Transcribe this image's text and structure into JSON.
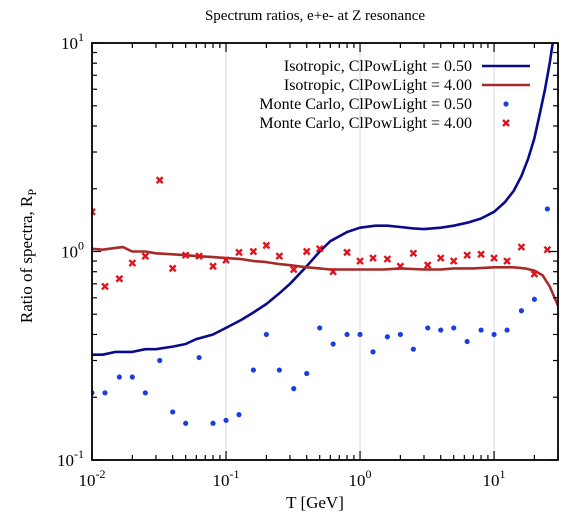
{
  "chart_data": {
    "type": "line",
    "title": "Spectrum ratios, e+e- at Z resonance",
    "xlabel": "T [GeV]",
    "ylabel_main": "Ratio of spectra, R",
    "ylabel_sub": "P",
    "x_scale": "log",
    "y_scale": "log",
    "xlim": [
      0.01,
      30
    ],
    "ylim": [
      0.1,
      10
    ],
    "grid": "vertical",
    "legend_position": "top-right",
    "x_ticks": [
      {
        "value": 0.01,
        "base": "10",
        "exp": "-2"
      },
      {
        "value": 0.1,
        "base": "10",
        "exp": "-1"
      },
      {
        "value": 1,
        "base": "10",
        "exp": "0"
      },
      {
        "value": 10,
        "base": "10",
        "exp": "1"
      }
    ],
    "y_ticks": [
      {
        "value": 0.1,
        "label": "10",
        "exp": "-1"
      },
      {
        "value": 1,
        "label": "10",
        "exp": "0"
      },
      {
        "value": 10,
        "label": "10",
        "exp": "1"
      }
    ],
    "series": [
      {
        "name": "Isotropic, ClPowLight = 0.50",
        "style": "line",
        "color": "#0a0a8c",
        "points": [
          [
            0.01,
            0.32
          ],
          [
            0.012,
            0.32
          ],
          [
            0.015,
            0.33
          ],
          [
            0.02,
            0.33
          ],
          [
            0.025,
            0.34
          ],
          [
            0.03,
            0.34
          ],
          [
            0.04,
            0.35
          ],
          [
            0.05,
            0.36
          ],
          [
            0.06,
            0.38
          ],
          [
            0.08,
            0.4
          ],
          [
            0.1,
            0.43
          ],
          [
            0.13,
            0.47
          ],
          [
            0.16,
            0.51
          ],
          [
            0.2,
            0.56
          ],
          [
            0.25,
            0.63
          ],
          [
            0.3,
            0.7
          ],
          [
            0.4,
            0.85
          ],
          [
            0.5,
            1.0
          ],
          [
            0.6,
            1.12
          ],
          [
            0.8,
            1.24
          ],
          [
            1.0,
            1.3
          ],
          [
            1.3,
            1.33
          ],
          [
            1.6,
            1.33
          ],
          [
            2.0,
            1.31
          ],
          [
            2.5,
            1.29
          ],
          [
            3.0,
            1.28
          ],
          [
            4.0,
            1.3
          ],
          [
            5.0,
            1.33
          ],
          [
            6.5,
            1.38
          ],
          [
            8.0,
            1.44
          ],
          [
            10,
            1.55
          ],
          [
            12,
            1.72
          ],
          [
            14,
            1.95
          ],
          [
            16,
            2.3
          ],
          [
            18,
            2.8
          ],
          [
            20,
            3.5
          ],
          [
            22,
            4.6
          ],
          [
            24,
            6.0
          ],
          [
            26,
            8.0
          ],
          [
            28,
            11
          ]
        ]
      },
      {
        "name": "Isotropic, ClPowLight = 4.00",
        "style": "line",
        "color": "#a52a2a",
        "points": [
          [
            0.01,
            1.03
          ],
          [
            0.012,
            1.02
          ],
          [
            0.015,
            1.04
          ],
          [
            0.017,
            1.05
          ],
          [
            0.02,
            1.0
          ],
          [
            0.025,
            1.0
          ],
          [
            0.03,
            0.98
          ],
          [
            0.04,
            0.97
          ],
          [
            0.05,
            0.96
          ],
          [
            0.06,
            0.95
          ],
          [
            0.08,
            0.94
          ],
          [
            0.1,
            0.93
          ],
          [
            0.13,
            0.92
          ],
          [
            0.16,
            0.9
          ],
          [
            0.2,
            0.89
          ],
          [
            0.25,
            0.87
          ],
          [
            0.3,
            0.86
          ],
          [
            0.4,
            0.84
          ],
          [
            0.5,
            0.83
          ],
          [
            0.6,
            0.82
          ],
          [
            0.8,
            0.82
          ],
          [
            1.0,
            0.82
          ],
          [
            1.5,
            0.82
          ],
          [
            2.0,
            0.83
          ],
          [
            3.0,
            0.82
          ],
          [
            4.0,
            0.82
          ],
          [
            5.0,
            0.83
          ],
          [
            7.0,
            0.83
          ],
          [
            10,
            0.84
          ],
          [
            14,
            0.84
          ],
          [
            17,
            0.83
          ],
          [
            20,
            0.81
          ],
          [
            23,
            0.77
          ],
          [
            26,
            0.68
          ],
          [
            30,
            0.55
          ]
        ]
      },
      {
        "name": "Monte Carlo, ClPowLight = 0.50",
        "style": "dots",
        "color": "#1a3fe0",
        "points": [
          [
            0.01,
            0.21
          ],
          [
            0.0125,
            0.21
          ],
          [
            0.016,
            0.25
          ],
          [
            0.02,
            0.25
          ],
          [
            0.025,
            0.21
          ],
          [
            0.032,
            0.3
          ],
          [
            0.04,
            0.17
          ],
          [
            0.05,
            0.15
          ],
          [
            0.063,
            0.31
          ],
          [
            0.08,
            0.15
          ],
          [
            0.1,
            0.155
          ],
          [
            0.125,
            0.165
          ],
          [
            0.16,
            0.27
          ],
          [
            0.2,
            0.4
          ],
          [
            0.25,
            0.27
          ],
          [
            0.32,
            0.22
          ],
          [
            0.4,
            0.26
          ],
          [
            0.5,
            0.43
          ],
          [
            0.63,
            0.36
          ],
          [
            0.8,
            0.4
          ],
          [
            1.0,
            0.4
          ],
          [
            1.25,
            0.33
          ],
          [
            1.6,
            0.39
          ],
          [
            2.0,
            0.4
          ],
          [
            2.5,
            0.34
          ],
          [
            3.2,
            0.43
          ],
          [
            4.0,
            0.42
          ],
          [
            5.0,
            0.43
          ],
          [
            6.3,
            0.37
          ],
          [
            8.0,
            0.42
          ],
          [
            10,
            0.4
          ],
          [
            12.5,
            0.42
          ],
          [
            16,
            0.52
          ],
          [
            20,
            0.59
          ],
          [
            25,
            1.6
          ]
        ]
      },
      {
        "name": "Monte Carlo, ClPowLight = 4.00",
        "style": "crosses",
        "color": "#e0141e",
        "points": [
          [
            0.01,
            1.55
          ],
          [
            0.0125,
            0.68
          ],
          [
            0.016,
            0.74
          ],
          [
            0.02,
            0.88
          ],
          [
            0.025,
            0.95
          ],
          [
            0.032,
            2.2
          ],
          [
            0.04,
            0.83
          ],
          [
            0.05,
            0.96
          ],
          [
            0.063,
            0.95
          ],
          [
            0.08,
            0.85
          ],
          [
            0.1,
            0.91
          ],
          [
            0.125,
            0.99
          ],
          [
            0.16,
            1.0
          ],
          [
            0.2,
            1.07
          ],
          [
            0.25,
            0.95
          ],
          [
            0.32,
            0.82
          ],
          [
            0.4,
            1.0
          ],
          [
            0.5,
            1.03
          ],
          [
            0.63,
            0.8
          ],
          [
            0.8,
            0.99
          ],
          [
            1.0,
            0.9
          ],
          [
            1.25,
            0.93
          ],
          [
            1.6,
            0.92
          ],
          [
            2.0,
            0.85
          ],
          [
            2.5,
            0.98
          ],
          [
            3.2,
            0.86
          ],
          [
            4.0,
            0.93
          ],
          [
            5.0,
            0.9
          ],
          [
            6.3,
            0.96
          ],
          [
            8.0,
            0.97
          ],
          [
            10,
            0.93
          ],
          [
            12.5,
            0.9
          ],
          [
            16,
            1.05
          ],
          [
            20,
            0.78
          ],
          [
            25,
            1.02
          ]
        ]
      }
    ]
  }
}
